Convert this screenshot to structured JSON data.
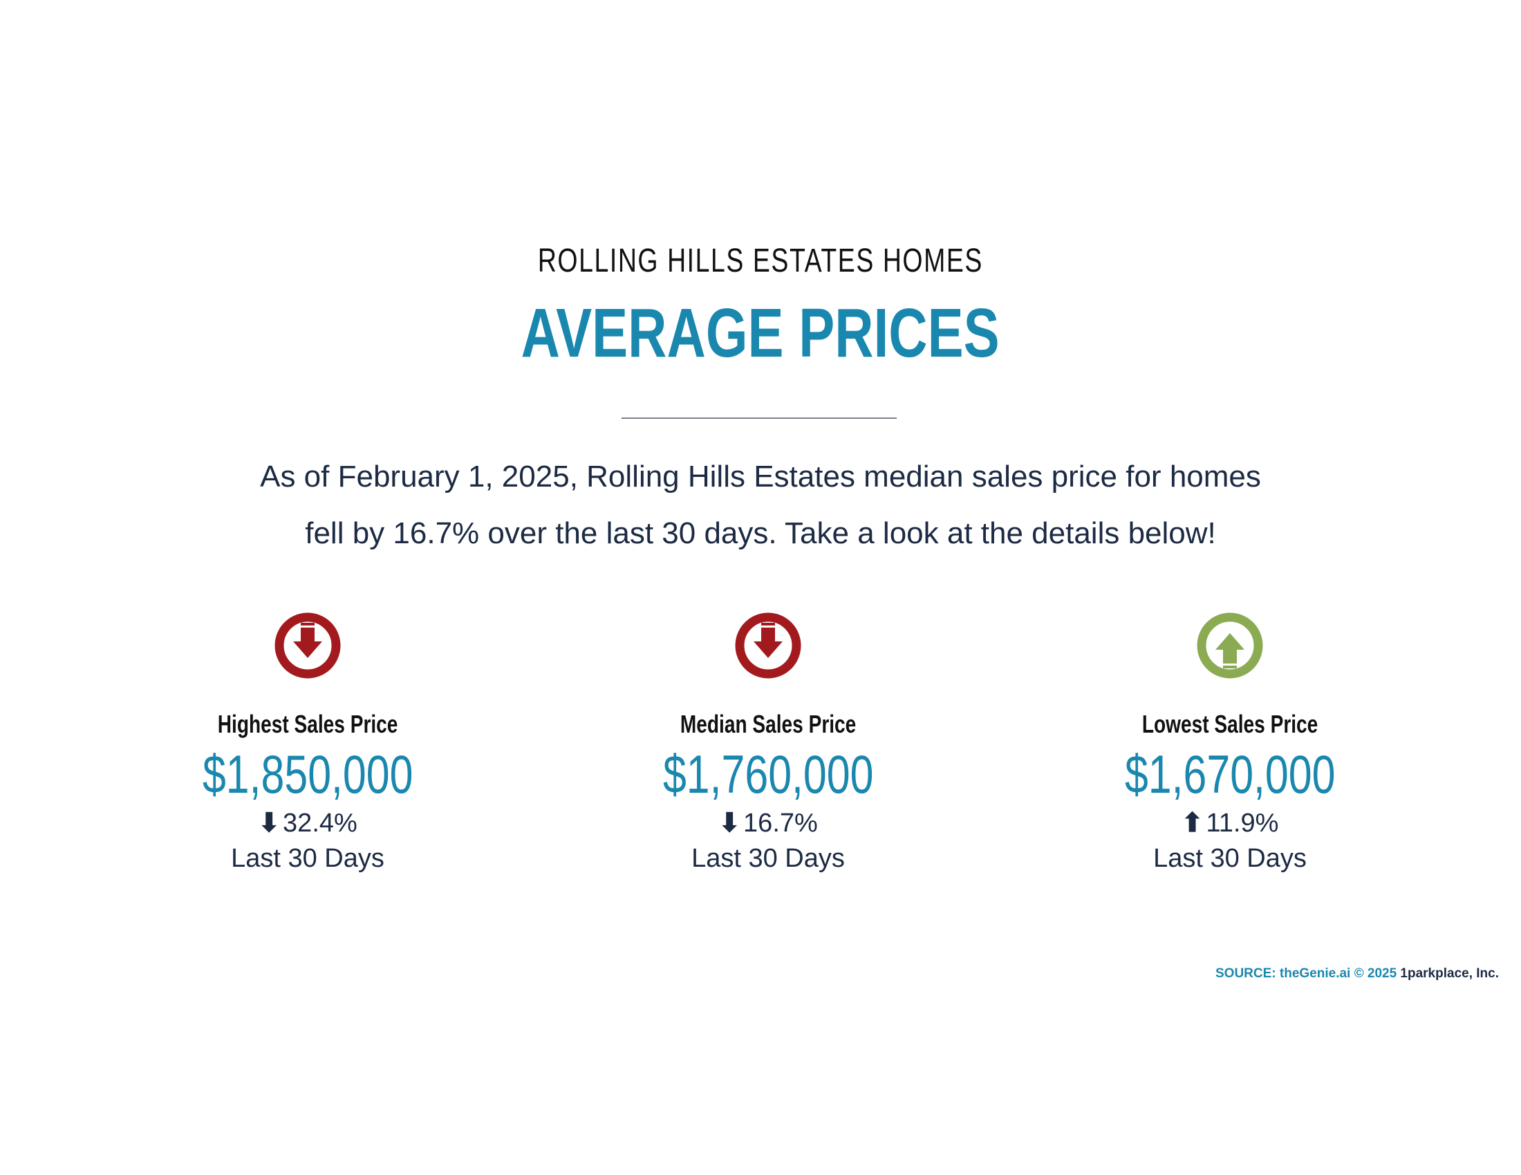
{
  "header": {
    "subtitle": "ROLLING HILLS ESTATES HOMES",
    "title": "AVERAGE PRICES"
  },
  "summary": {
    "line1": "As of February 1, 2025, Rolling Hills Estates median sales price for homes",
    "line2": "fell by 16.7% over the last 30 days. Take a look at the details below!"
  },
  "colors": {
    "down": "#a31a1e",
    "up": "#8aab52",
    "accent": "#1a87ae",
    "text": "#1c2a43"
  },
  "stats": [
    {
      "label": "Highest Sales Price",
      "value": "$1,850,000",
      "direction": "down",
      "arrow": "⬇",
      "change": "32.4%",
      "period": "Last 30 Days",
      "icon": "down-arrow-circle-icon"
    },
    {
      "label": "Median Sales Price",
      "value": "$1,760,000",
      "direction": "down",
      "arrow": "⬇",
      "change": "16.7%",
      "period": "Last 30 Days",
      "icon": "down-arrow-circle-icon"
    },
    {
      "label": "Lowest Sales Price",
      "value": "$1,670,000",
      "direction": "up",
      "arrow": "⬆",
      "change": "11.9%",
      "period": "Last 30 Days",
      "icon": "up-arrow-circle-icon"
    }
  ],
  "footer": {
    "source": "SOURCE: theGenie.ai © 2025",
    "company": "1parkplace, Inc."
  }
}
